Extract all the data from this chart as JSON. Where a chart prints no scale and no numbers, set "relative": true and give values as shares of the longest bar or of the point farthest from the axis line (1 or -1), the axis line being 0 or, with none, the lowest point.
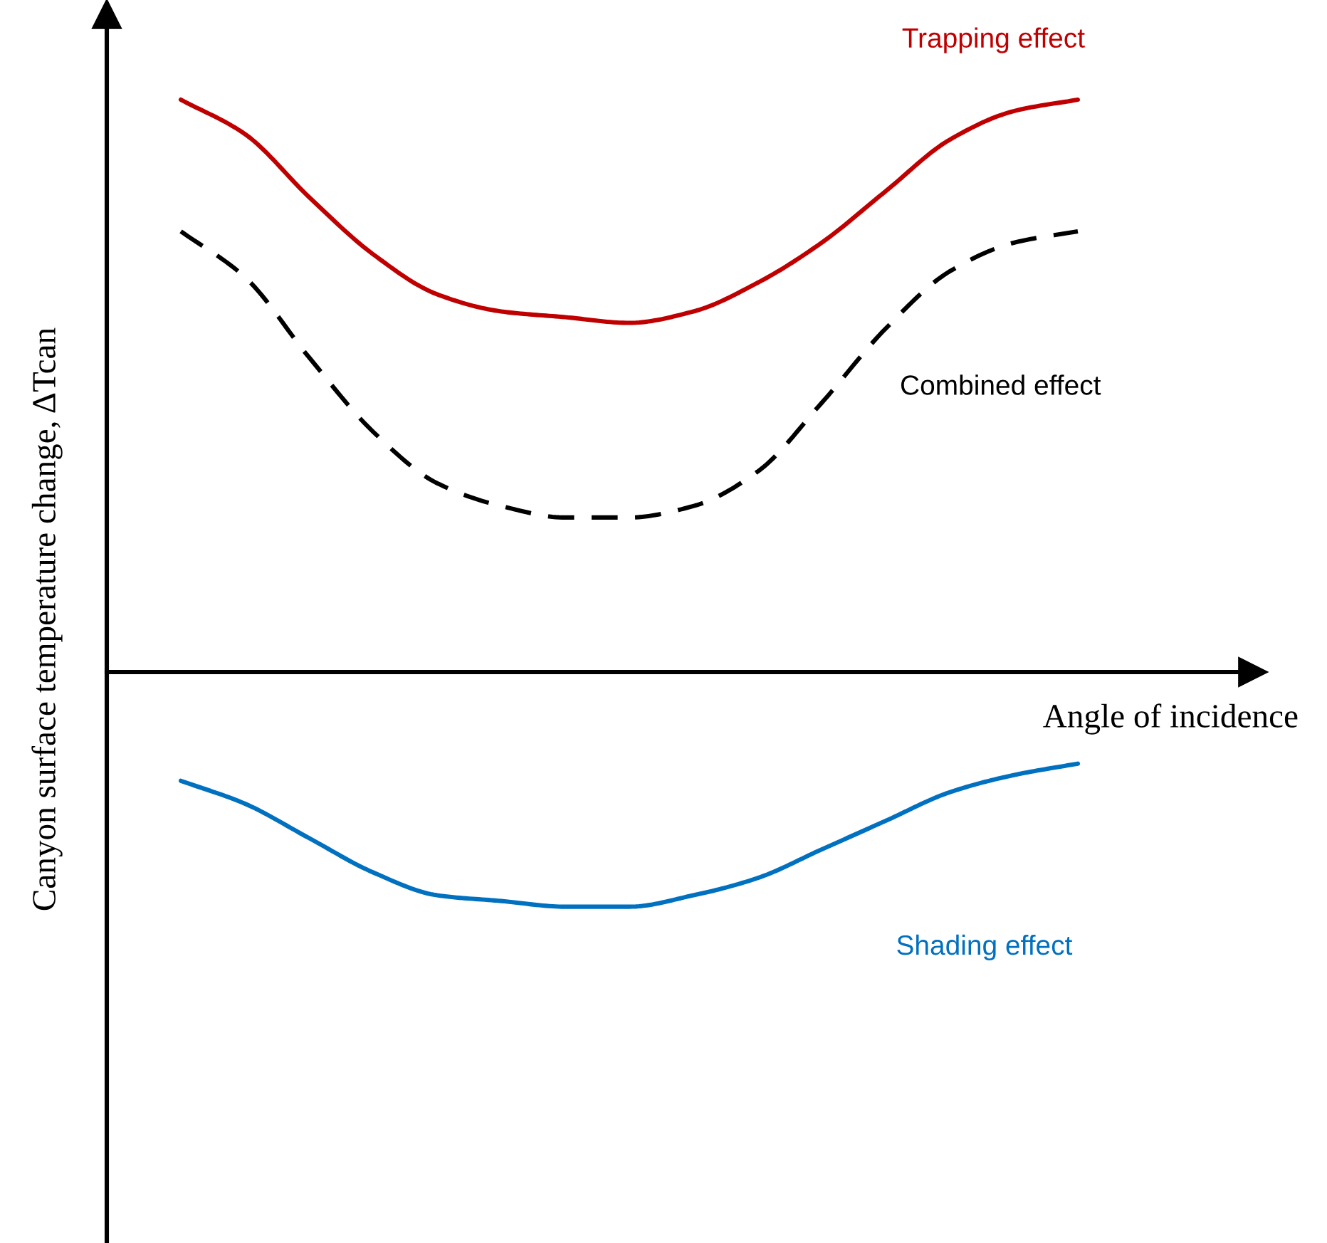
{
  "chart_data": {
    "type": "line",
    "relative": true,
    "xlabel": "Angle of incidence",
    "ylabel": "Canyon surface temperature change, ΔTcan",
    "legend": false,
    "marker": "none",
    "categories": [
      null,
      null,
      null,
      null,
      null,
      null,
      null,
      null,
      null,
      null,
      null,
      null,
      null,
      null,
      null
    ],
    "series": [
      {
        "name": "Trapping effect",
        "color": "#c00000",
        "line_style": "solid",
        "values": [
          1.0,
          0.94,
          0.83,
          0.73,
          0.66,
          0.63,
          0.62,
          0.61,
          0.63,
          0.68,
          0.75,
          0.84,
          0.93,
          0.98,
          1.0
        ]
      },
      {
        "name": "Combined effect",
        "color": "#000000",
        "line_style": "dashed",
        "values": [
          0.77,
          0.69,
          0.55,
          0.42,
          0.33,
          0.29,
          0.27,
          0.27,
          0.29,
          0.35,
          0.47,
          0.6,
          0.7,
          0.75,
          0.77
        ]
      },
      {
        "name": "Shading effect",
        "color": "#0070c0",
        "line_style": "solid",
        "values": [
          -0.19,
          -0.23,
          -0.29,
          -0.35,
          -0.39,
          -0.4,
          -0.41,
          -0.41,
          -0.39,
          -0.36,
          -0.31,
          -0.26,
          -0.21,
          -0.18,
          -0.16
        ]
      }
    ]
  }
}
